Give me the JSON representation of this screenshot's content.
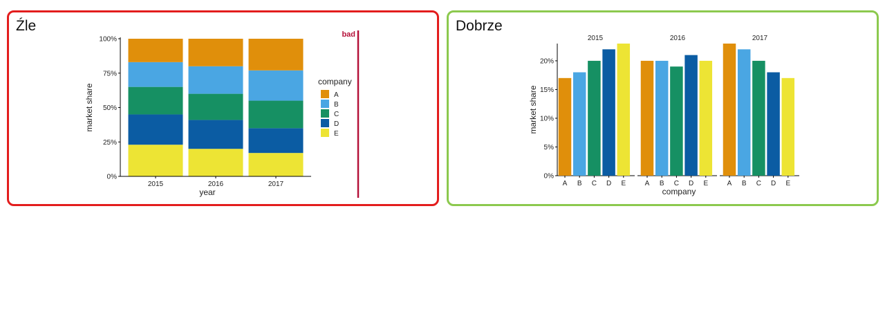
{
  "panels": {
    "bad": {
      "title": "Źle"
    },
    "good": {
      "title": "Dobrze"
    }
  },
  "colors": {
    "A": "#e08f0b",
    "B": "#4aa6e3",
    "C": "#169063",
    "D": "#0b5ca3",
    "E": "#ede434",
    "bad_marker": "#b5123a",
    "bad_border": "#e31d1d",
    "good_border": "#8cc94e"
  },
  "bad_marker_label": "bad",
  "chart_data": [
    {
      "type": "bar",
      "stacked": true,
      "categories": [
        "2015",
        "2016",
        "2017"
      ],
      "xlabel": "year",
      "ylabel": "market share",
      "ylim": [
        0,
        100
      ],
      "yticks": [
        "0%",
        "25%",
        "50%",
        "75%",
        "100%"
      ],
      "legend_title": "company",
      "legend_position": "right",
      "series": [
        {
          "name": "E",
          "values": [
            23,
            20,
            17
          ]
        },
        {
          "name": "D",
          "values": [
            22,
            21,
            18
          ]
        },
        {
          "name": "C",
          "values": [
            20,
            19,
            20
          ]
        },
        {
          "name": "B",
          "values": [
            18,
            20,
            22
          ]
        },
        {
          "name": "A",
          "values": [
            17,
            20,
            23
          ]
        }
      ]
    },
    {
      "type": "bar",
      "faceted": true,
      "xlabel": "company",
      "ylabel": "market share",
      "ylim": [
        0,
        23
      ],
      "yticks": [
        "0%",
        "5%",
        "10%",
        "15%",
        "20%"
      ],
      "facets": [
        {
          "title": "2015",
          "categories": [
            "A",
            "B",
            "C",
            "D",
            "E"
          ],
          "values": [
            17,
            18,
            20,
            22,
            23
          ]
        },
        {
          "title": "2016",
          "categories": [
            "A",
            "B",
            "C",
            "D",
            "E"
          ],
          "values": [
            20,
            20,
            19,
            21,
            20
          ]
        },
        {
          "title": "2017",
          "categories": [
            "A",
            "B",
            "C",
            "D",
            "E"
          ],
          "values": [
            23,
            22,
            20,
            18,
            17
          ]
        }
      ]
    }
  ]
}
